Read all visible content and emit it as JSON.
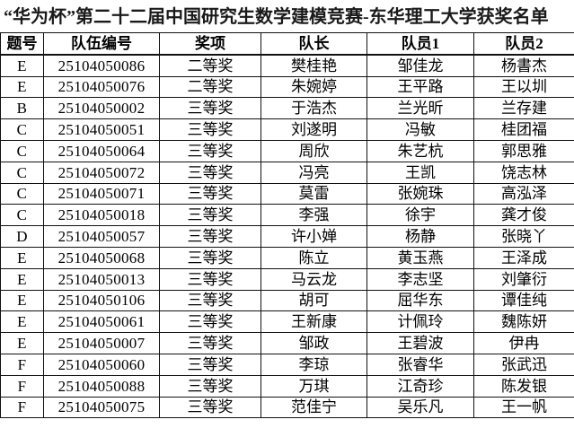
{
  "page": {
    "title": "“华为杯”第二十二届中国研究生数学建模竞赛-东华理工大学获奖名单"
  },
  "colors": {
    "background": "#ffffff",
    "text": "#000000",
    "border": "#111111"
  },
  "table": {
    "headers": [
      "题号",
      "队伍编号",
      "奖项",
      "队长",
      "队员1",
      "队员2"
    ],
    "column_keys": [
      "problem",
      "team_id",
      "award",
      "captain",
      "member1",
      "member2"
    ],
    "rows": [
      {
        "problem": "E",
        "team_id": "25104050086",
        "award": "二等奖",
        "captain": "樊桂艳",
        "member1": "邹佳龙",
        "member2": "杨書杰"
      },
      {
        "problem": "E",
        "team_id": "25104050076",
        "award": "二等奖",
        "captain": "朱婉婷",
        "member1": "王平路",
        "member2": "王以圳"
      },
      {
        "problem": "B",
        "team_id": "25104050002",
        "award": "三等奖",
        "captain": "于浩杰",
        "member1": "兰光昕",
        "member2": "兰存建"
      },
      {
        "problem": "C",
        "team_id": "25104050051",
        "award": "三等奖",
        "captain": "刘遂明",
        "member1": "冯敏",
        "member2": "桂团福"
      },
      {
        "problem": "C",
        "team_id": "25104050064",
        "award": "三等奖",
        "captain": "周欣",
        "member1": "朱艺杭",
        "member2": "郭思雅"
      },
      {
        "problem": "C",
        "team_id": "25104050072",
        "award": "三等奖",
        "captain": "冯亮",
        "member1": "王凯",
        "member2": "饶志林"
      },
      {
        "problem": "C",
        "team_id": "25104050071",
        "award": "三等奖",
        "captain": "莫雷",
        "member1": "张婉珠",
        "member2": "高泓泽"
      },
      {
        "problem": "C",
        "team_id": "25104050018",
        "award": "三等奖",
        "captain": "李强",
        "member1": "徐宇",
        "member2": "龚才俊"
      },
      {
        "problem": "D",
        "team_id": "25104050057",
        "award": "三等奖",
        "captain": "许小婵",
        "member1": "杨静",
        "member2": "张晓丫"
      },
      {
        "problem": "E",
        "team_id": "25104050068",
        "award": "三等奖",
        "captain": "陈立",
        "member1": "黄玉燕",
        "member2": "王泽成"
      },
      {
        "problem": "E",
        "team_id": "25104050013",
        "award": "三等奖",
        "captain": "马云龙",
        "member1": "李志坚",
        "member2": "刘肇衍"
      },
      {
        "problem": "E",
        "team_id": "25104050106",
        "award": "三等奖",
        "captain": "胡可",
        "member1": "屈华东",
        "member2": "谭佳纯"
      },
      {
        "problem": "E",
        "team_id": "25104050061",
        "award": "三等奖",
        "captain": "王新康",
        "member1": "计佩玲",
        "member2": "魏陈妍"
      },
      {
        "problem": "E",
        "team_id": "25104050007",
        "award": "三等奖",
        "captain": "邹政",
        "member1": "王碧波",
        "member2": "伊冉"
      },
      {
        "problem": "F",
        "team_id": "25104050060",
        "award": "三等奖",
        "captain": "李琼",
        "member1": "张睿华",
        "member2": "张武迅"
      },
      {
        "problem": "F",
        "team_id": "25104050088",
        "award": "三等奖",
        "captain": "万琪",
        "member1": "江奇珍",
        "member2": "陈发银"
      },
      {
        "problem": "F",
        "team_id": "25104050075",
        "award": "三等奖",
        "captain": "范佳宁",
        "member1": "吴乐凡",
        "member2": "王一帆"
      }
    ]
  }
}
